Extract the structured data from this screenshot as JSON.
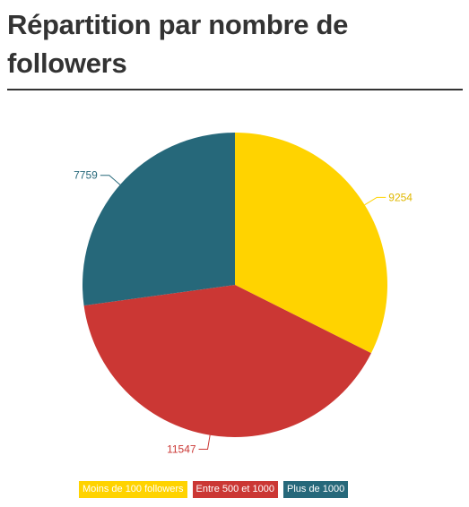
{
  "header": {
    "title": "Répartition par nombre de followers"
  },
  "chart_data": {
    "type": "pie",
    "title": "Répartition par nombre de followers",
    "categories": [
      "Moins de 100 followers",
      "Entre 500 et 1000",
      "Plus de 1000"
    ],
    "values": [
      9254,
      11547,
      7759
    ],
    "colors": [
      "#FFD300",
      "#CB3734",
      "#26687A"
    ],
    "start_angle_deg": 0,
    "direction": "clockwise",
    "legend_position": "bottom"
  }
}
